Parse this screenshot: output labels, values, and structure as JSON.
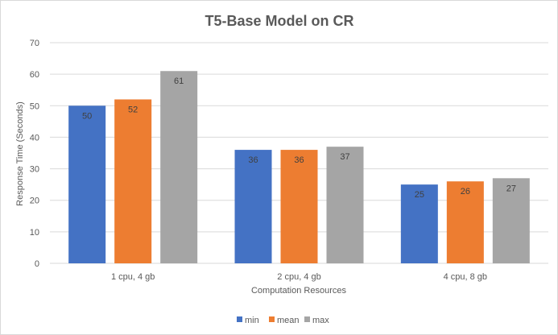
{
  "chart_data": {
    "type": "bar",
    "title": "T5-Base Model on CR",
    "xlabel": "Computation Resources",
    "ylabel": "Response Time (Seconds)",
    "ylim": [
      0,
      70
    ],
    "yticks": [
      0,
      10,
      20,
      30,
      40,
      50,
      60,
      70
    ],
    "grid": true,
    "legend_position": "bottom",
    "categories": [
      "1 cpu, 4 gb",
      "2 cpu, 4 gb",
      "4 cpu, 8 gb"
    ],
    "series": [
      {
        "name": "min",
        "values": [
          50,
          36,
          25
        ],
        "color": "#4472c4"
      },
      {
        "name": "mean",
        "values": [
          52,
          36,
          26
        ],
        "color": "#ed7d31"
      },
      {
        "name": "max",
        "values": [
          61,
          37,
          27
        ],
        "color": "#a5a5a5"
      }
    ]
  }
}
